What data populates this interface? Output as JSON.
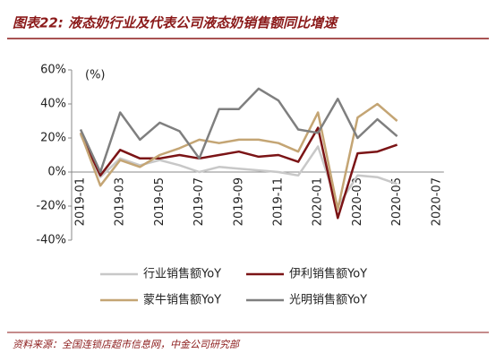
{
  "chart_data": {
    "type": "line",
    "title": "图表22: 液态奶行业及代表公司液态奶销售额同比增速",
    "y_unit": "(%)",
    "source": "资料来源：全国连锁店超市信息网，中金公司研究部",
    "categories": [
      "2019-01",
      null,
      "2019-03",
      null,
      "2019-05",
      null,
      "2019-07",
      null,
      "2019-09",
      null,
      "2019-11",
      null,
      "2020-01",
      null,
      "2020-03",
      null,
      "2020-05",
      null,
      "2020-07"
    ],
    "series": [
      {
        "name": "行业销售额YoY",
        "color": "#c8c8c8",
        "values": [
          22,
          -3,
          8,
          4,
          7,
          4,
          0,
          3,
          2,
          1,
          0,
          -2,
          15,
          -20,
          -2,
          -3,
          -7,
          null,
          null
        ]
      },
      {
        "name": "伊利销售额YoY",
        "color": "#7b1416",
        "values": [
          23,
          -2,
          13,
          8,
          8,
          10,
          8,
          10,
          12,
          9,
          10,
          6,
          26,
          -27,
          11,
          12,
          16,
          null,
          null
        ]
      },
      {
        "name": "蒙牛销售额YoY",
        "color": "#c4a574",
        "values": [
          23,
          -8,
          7,
          3,
          10,
          14,
          19,
          17,
          19,
          19,
          17,
          12,
          35,
          -22,
          32,
          40,
          30,
          null,
          null
        ]
      },
      {
        "name": "光明销售额YoY",
        "color": "#7f7f7f",
        "values": [
          25,
          0,
          35,
          19,
          29,
          24,
          8,
          37,
          37,
          49,
          42,
          25,
          23,
          43,
          20,
          31,
          21,
          null,
          null
        ]
      }
    ],
    "ylim": [
      -40,
      60
    ],
    "yticks": [
      {
        "value": -40,
        "label": "-40%"
      },
      {
        "value": -20,
        "label": "-20%"
      },
      {
        "value": 0,
        "label": "0%"
      },
      {
        "value": 20,
        "label": "20%"
      },
      {
        "value": 40,
        "label": "40%"
      },
      {
        "value": 60,
        "label": "60%"
      }
    ]
  }
}
